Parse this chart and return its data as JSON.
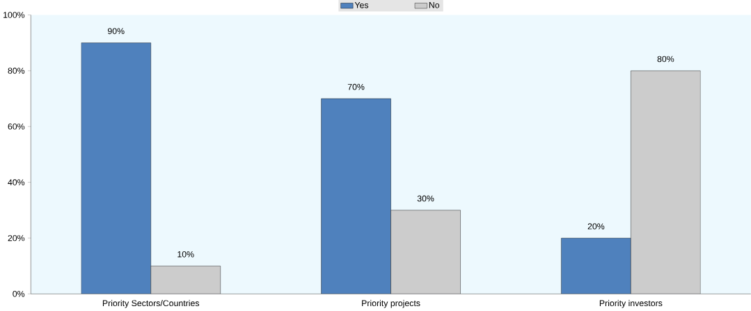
{
  "chart_data": {
    "type": "bar",
    "categories": [
      "Priority Sectors/Countries",
      "Priority projects",
      "Priority investors"
    ],
    "series": [
      {
        "name": "Yes",
        "color": "#4f81bd",
        "values": [
          90,
          70,
          20
        ],
        "value_labels": [
          "90%",
          "70%",
          "20%"
        ]
      },
      {
        "name": "No",
        "color": "#cccccc",
        "values": [
          10,
          30,
          80
        ],
        "value_labels": [
          "10%",
          "30%",
          "80%"
        ]
      }
    ],
    "ylim": [
      0,
      100
    ],
    "yticks": [
      {
        "value": 0,
        "label": "0%"
      },
      {
        "value": 20,
        "label": "20%"
      },
      {
        "value": 40,
        "label": "40%"
      },
      {
        "value": 60,
        "label": "60%"
      },
      {
        "value": 80,
        "label": "80%"
      },
      {
        "value": 100,
        "label": "100%"
      }
    ],
    "grid": false,
    "legend": "top"
  }
}
